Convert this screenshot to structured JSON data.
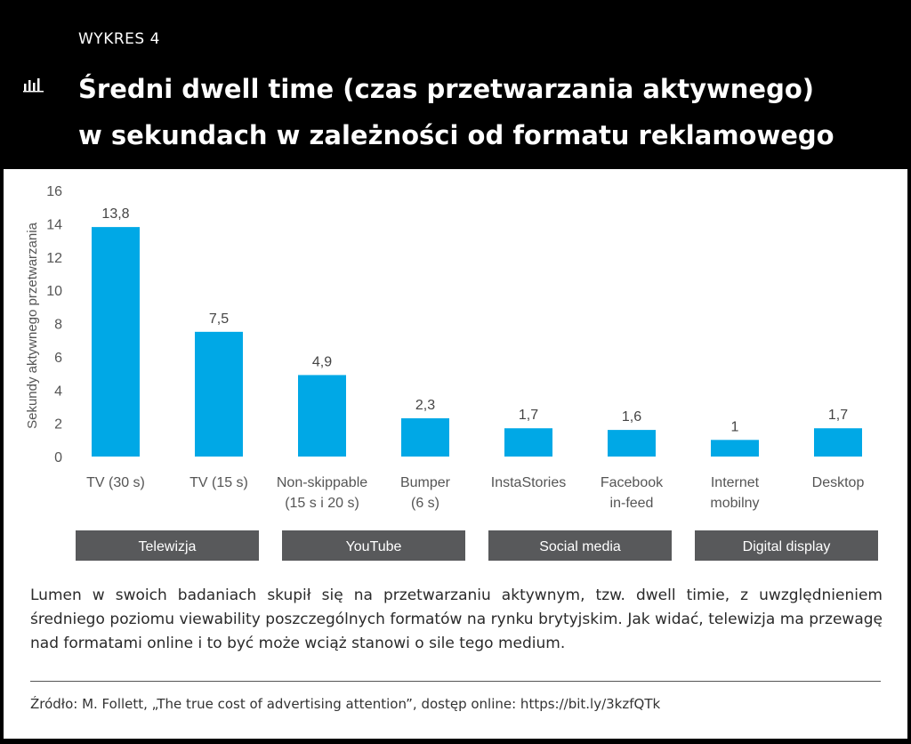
{
  "header": {
    "kicker": "WYKRES 4",
    "title_line1": "Średni dwell time (czas przetwarzania aktywnego)",
    "title_line2": "w sekundach w zależności od formatu reklamowego",
    "icon": "bar-chart-icon"
  },
  "chart_data": {
    "type": "bar",
    "ylabel": "Sekundy aktywnego przetwarzania",
    "ylim": [
      0,
      16
    ],
    "yticks": [
      0,
      2,
      4,
      6,
      8,
      10,
      12,
      14,
      16
    ],
    "bar_color": "#00a8e6",
    "group_color": "#58595b",
    "grid": false,
    "categories": [
      [
        "TV (30 s)"
      ],
      [
        "TV (15 s)"
      ],
      [
        "Non-skippable",
        "(15 s i 20 s)"
      ],
      [
        "Bumper",
        "(6 s)"
      ],
      [
        "InstaStories"
      ],
      [
        "Facebook",
        "in-feed"
      ],
      [
        "Internet",
        "mobilny"
      ],
      [
        "Desktop"
      ]
    ],
    "values": [
      13.8,
      7.5,
      4.9,
      2.3,
      1.7,
      1.6,
      1,
      1.7
    ],
    "value_labels": [
      "13,8",
      "7,5",
      "4,9",
      "2,3",
      "1,7",
      "1,6",
      "1",
      "1,7"
    ],
    "groups": [
      {
        "name": "Telewizja",
        "span": [
          0,
          1
        ]
      },
      {
        "name": "YouTube",
        "span": [
          2,
          3
        ]
      },
      {
        "name": "Social media",
        "span": [
          4,
          5
        ]
      },
      {
        "name": "Digital display",
        "span": [
          6,
          7
        ]
      }
    ]
  },
  "caption": "Lumen w swoich badaniach skupił się na przetwarzaniu aktywnym, tzw. dwell timie, z uwzględnieniem średniego poziomu viewability poszczególnych formatów na rynku brytyjskim. Jak widać, telewizja ma przewagę nad formatami online i to być może wciąż stanowi o sile tego medium.",
  "source": "Źródło: M. Follett, „The true cost of advertising attention”, dostęp online: https://bit.ly/3kzfQTk"
}
